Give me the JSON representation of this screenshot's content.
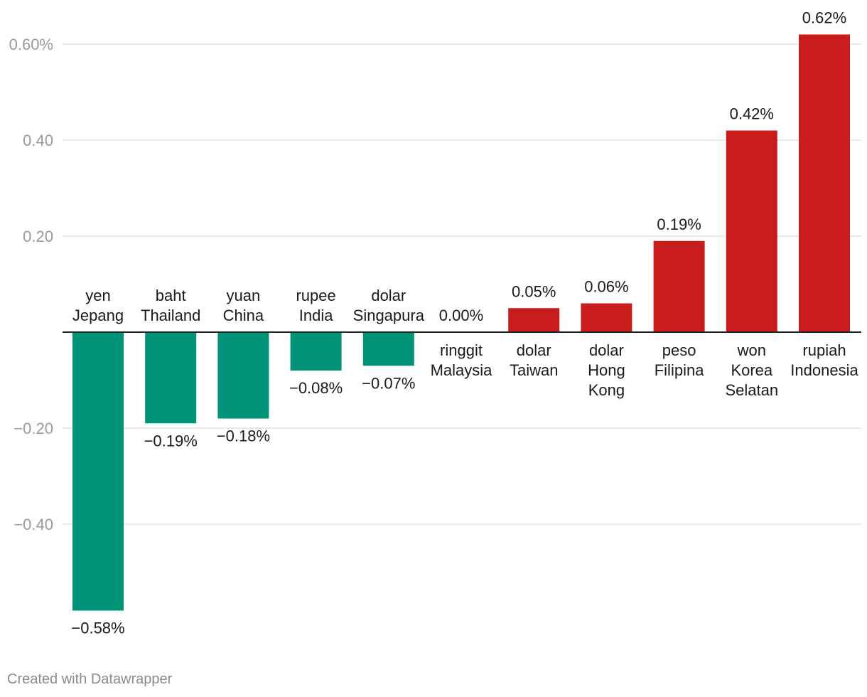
{
  "chart_data": {
    "type": "bar",
    "categories": [
      "yen Jepang",
      "baht Thailand",
      "yuan China",
      "rupee India",
      "dolar Singapura",
      "ringgit Malaysia",
      "dolar Taiwan",
      "dolar Hong Kong",
      "peso Filipina",
      "won Korea Selatan",
      "rupiah Indonesia"
    ],
    "category_lines": [
      [
        "yen",
        "Jepang"
      ],
      [
        "baht",
        "Thailand"
      ],
      [
        "yuan",
        "China"
      ],
      [
        "rupee",
        "India"
      ],
      [
        "dolar",
        "Singapura"
      ],
      [
        "ringgit",
        "Malaysia"
      ],
      [
        "dolar",
        "Taiwan"
      ],
      [
        "dolar",
        "Hong",
        "Kong"
      ],
      [
        "peso",
        "Filipina"
      ],
      [
        "won",
        "Korea",
        "Selatan"
      ],
      [
        "rupiah",
        "Indonesia"
      ]
    ],
    "values": [
      -0.58,
      -0.19,
      -0.18,
      -0.08,
      -0.07,
      0.0,
      0.05,
      0.06,
      0.19,
      0.42,
      0.62
    ],
    "value_labels": [
      "−0.58%",
      "−0.19%",
      "−0.18%",
      "−0.08%",
      "−0.07%",
      "0.00%",
      "0.05%",
      "0.06%",
      "0.19%",
      "0.42%",
      "0.62%"
    ],
    "yticks": [
      0.6,
      0.4,
      0.2,
      -0.2,
      -0.4
    ],
    "ytick_labels": [
      "0.60%",
      "0.40",
      "0.20",
      "−0.20",
      "−0.40"
    ],
    "ylim": [
      -0.6,
      0.65
    ],
    "title": "",
    "xlabel": "",
    "ylabel": "",
    "colors": {
      "negative": "#009378",
      "positive": "#c91d1d",
      "grid": "#e3e3e3",
      "baseline": "#222222"
    },
    "credit": "Created with Datawrapper"
  }
}
